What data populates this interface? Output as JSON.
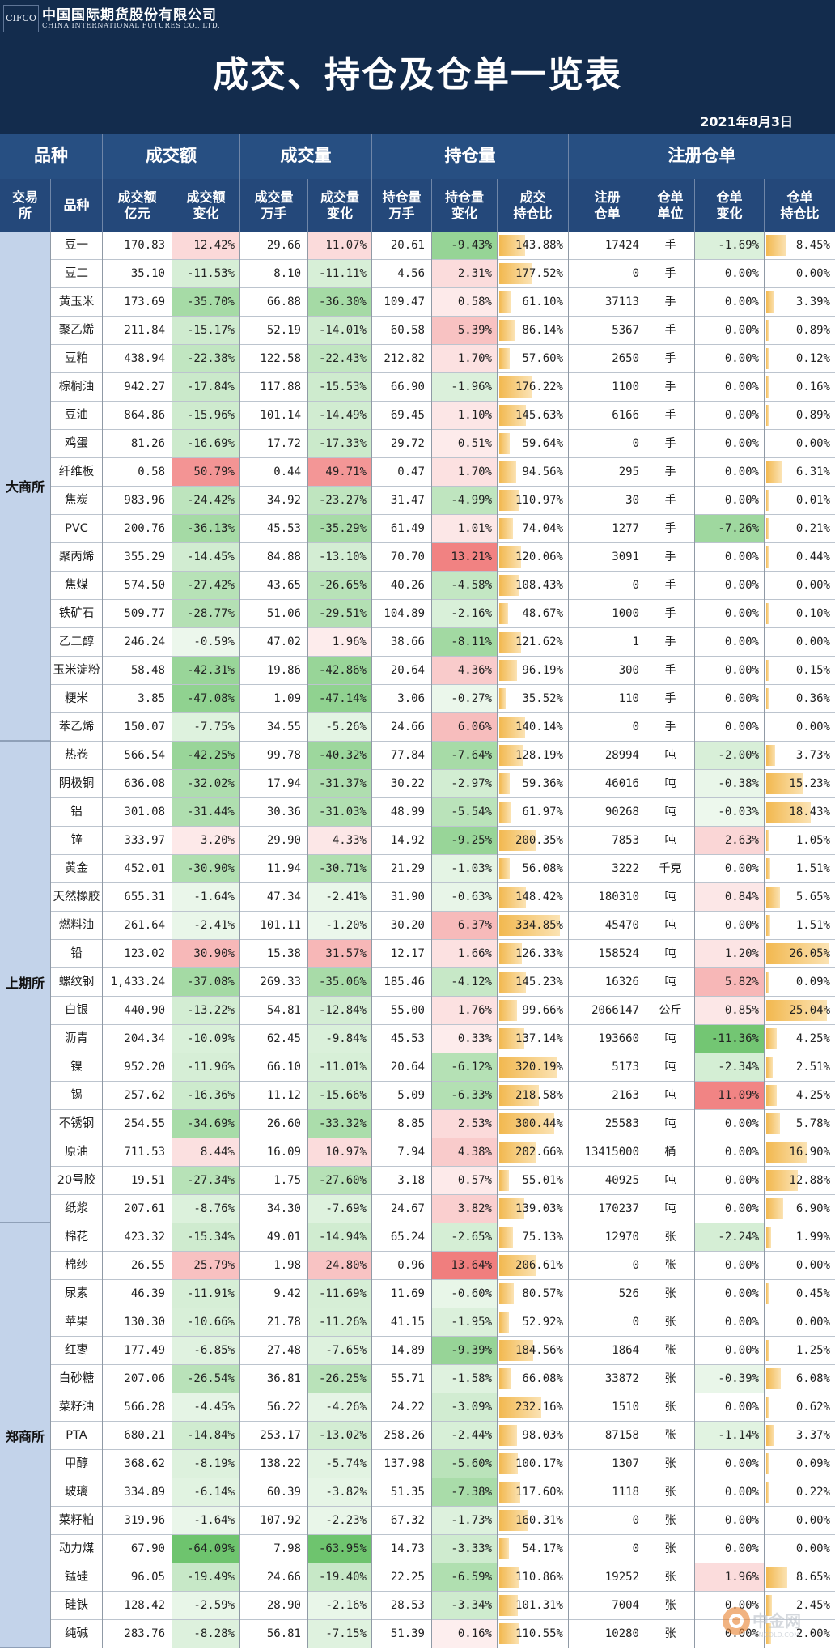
{
  "header": {
    "logo": "CIFCO",
    "company_cn": "中国国际期货股份有限公司",
    "company_en": "CHINA INTERNATIONAL FUTURES CO., LTD.",
    "title": "成交、持仓及仓单一览表",
    "date": "2021年8月3日"
  },
  "watermark": {
    "text": "中金网",
    "sub": "CNGOLD.COM"
  },
  "colors": {
    "up": "#f07b7b",
    "down": "#6cc36c",
    "bar": "#f2b84f",
    "banner": "#132c4d",
    "exchange_bg": "#c3d3ea"
  },
  "columns": {
    "groups": [
      "品种",
      "成交额",
      "成交量",
      "持仓量",
      "注册仓单"
    ],
    "exchange": "交易\n所",
    "product": "品种",
    "amount": "成交额\n亿元",
    "amount_chg": "成交额\n变化",
    "volume": "成交量\n万手",
    "volume_chg": "成交量\n变化",
    "oi": "持仓量\n万手",
    "oi_chg": "持仓量\n变化",
    "vol_oi_ratio": "成交\n持仓比",
    "receipts": "注册\n仓单",
    "unit": "仓单\n单位",
    "receipt_chg": "仓单\n变化",
    "receipt_oi_ratio": "仓单\n持仓比"
  },
  "exchanges": [
    {
      "name": "大商所",
      "rows": [
        [
          "豆一",
          "170.83",
          "12.42%",
          "29.66",
          "11.07%",
          "20.61",
          "-9.43%",
          "143.88%",
          "17424",
          "手",
          "-1.69%",
          "8.45%"
        ],
        [
          "豆二",
          "35.10",
          "-11.53%",
          "8.10",
          "-11.11%",
          "4.56",
          "2.31%",
          "177.52%",
          "0",
          "手",
          "0.00%",
          "0.00%"
        ],
        [
          "黄玉米",
          "173.69",
          "-35.70%",
          "66.88",
          "-36.30%",
          "109.47",
          "0.58%",
          "61.10%",
          "37113",
          "手",
          "0.00%",
          "3.39%"
        ],
        [
          "聚乙烯",
          "211.84",
          "-15.17%",
          "52.19",
          "-14.01%",
          "60.58",
          "5.39%",
          "86.14%",
          "5367",
          "手",
          "0.00%",
          "0.89%"
        ],
        [
          "豆粕",
          "438.94",
          "-22.38%",
          "122.58",
          "-22.43%",
          "212.82",
          "1.70%",
          "57.60%",
          "2650",
          "手",
          "0.00%",
          "0.12%"
        ],
        [
          "棕榈油",
          "942.27",
          "-17.84%",
          "117.88",
          "-15.53%",
          "66.90",
          "-1.96%",
          "176.22%",
          "1100",
          "手",
          "0.00%",
          "0.16%"
        ],
        [
          "豆油",
          "864.86",
          "-15.96%",
          "101.14",
          "-14.49%",
          "69.45",
          "1.10%",
          "145.63%",
          "6166",
          "手",
          "0.00%",
          "0.89%"
        ],
        [
          "鸡蛋",
          "81.26",
          "-16.69%",
          "17.72",
          "-17.33%",
          "29.72",
          "0.51%",
          "59.64%",
          "0",
          "手",
          "0.00%",
          "0.00%"
        ],
        [
          "纤维板",
          "0.58",
          "50.79%",
          "0.44",
          "49.71%",
          "0.47",
          "1.70%",
          "94.56%",
          "295",
          "手",
          "0.00%",
          "6.31%"
        ],
        [
          "焦炭",
          "983.96",
          "-24.42%",
          "34.92",
          "-23.27%",
          "31.47",
          "-4.99%",
          "110.97%",
          "30",
          "手",
          "0.00%",
          "0.01%"
        ],
        [
          "PVC",
          "200.76",
          "-36.13%",
          "45.53",
          "-35.29%",
          "61.49",
          "1.01%",
          "74.04%",
          "1277",
          "手",
          "-7.26%",
          "0.21%"
        ],
        [
          "聚丙烯",
          "355.29",
          "-14.45%",
          "84.88",
          "-13.10%",
          "70.70",
          "13.21%",
          "120.06%",
          "3091",
          "手",
          "0.00%",
          "0.44%"
        ],
        [
          "焦煤",
          "574.50",
          "-27.42%",
          "43.65",
          "-26.65%",
          "40.26",
          "-4.58%",
          "108.43%",
          "0",
          "手",
          "0.00%",
          "0.00%"
        ],
        [
          "铁矿石",
          "509.77",
          "-28.77%",
          "51.06",
          "-29.51%",
          "104.89",
          "-2.16%",
          "48.67%",
          "1000",
          "手",
          "0.00%",
          "0.10%"
        ],
        [
          "乙二醇",
          "246.24",
          "-0.59%",
          "47.02",
          "1.96%",
          "38.66",
          "-8.11%",
          "121.62%",
          "1",
          "手",
          "0.00%",
          "0.00%"
        ],
        [
          "玉米淀粉",
          "58.48",
          "-42.31%",
          "19.86",
          "-42.86%",
          "20.64",
          "4.36%",
          "96.19%",
          "300",
          "手",
          "0.00%",
          "0.15%"
        ],
        [
          "粳米",
          "3.85",
          "-47.08%",
          "1.09",
          "-47.14%",
          "3.06",
          "-0.27%",
          "35.52%",
          "110",
          "手",
          "0.00%",
          "0.36%"
        ],
        [
          "苯乙烯",
          "150.07",
          "-7.75%",
          "34.55",
          "-5.26%",
          "24.66",
          "6.06%",
          "140.14%",
          "0",
          "手",
          "0.00%",
          "0.00%"
        ]
      ]
    },
    {
      "name": "上期所",
      "rows": [
        [
          "热卷",
          "566.54",
          "-42.25%",
          "99.78",
          "-40.32%",
          "77.84",
          "-7.64%",
          "128.19%",
          "28994",
          "吨",
          "-2.00%",
          "3.73%"
        ],
        [
          "阴极铜",
          "636.08",
          "-32.02%",
          "17.94",
          "-31.37%",
          "30.22",
          "-2.97%",
          "59.36%",
          "46016",
          "吨",
          "-0.38%",
          "15.23%"
        ],
        [
          "铝",
          "301.08",
          "-31.44%",
          "30.36",
          "-31.03%",
          "48.99",
          "-5.54%",
          "61.97%",
          "90268",
          "吨",
          "-0.03%",
          "18.43%"
        ],
        [
          "锌",
          "333.97",
          "3.20%",
          "29.90",
          "4.33%",
          "14.92",
          "-9.25%",
          "200.35%",
          "7853",
          "吨",
          "2.63%",
          "1.05%"
        ],
        [
          "黄金",
          "452.01",
          "-30.90%",
          "11.94",
          "-30.71%",
          "21.29",
          "-1.03%",
          "56.08%",
          "3222",
          "千克",
          "0.00%",
          "1.51%"
        ],
        [
          "天然橡胶",
          "655.31",
          "-1.64%",
          "47.34",
          "-2.41%",
          "31.90",
          "-0.63%",
          "148.42%",
          "180310",
          "吨",
          "0.84%",
          "5.65%"
        ],
        [
          "燃料油",
          "261.64",
          "-2.41%",
          "101.11",
          "-1.20%",
          "30.20",
          "6.37%",
          "334.85%",
          "45470",
          "吨",
          "0.00%",
          "1.51%"
        ],
        [
          "铅",
          "123.02",
          "30.90%",
          "15.38",
          "31.57%",
          "12.17",
          "1.66%",
          "126.33%",
          "158524",
          "吨",
          "1.20%",
          "26.05%"
        ],
        [
          "螺纹钢",
          "1,433.24",
          "-37.08%",
          "269.33",
          "-35.06%",
          "185.46",
          "-4.12%",
          "145.23%",
          "16326",
          "吨",
          "5.82%",
          "0.09%"
        ],
        [
          "白银",
          "440.90",
          "-13.22%",
          "54.81",
          "-12.84%",
          "55.00",
          "1.76%",
          "99.66%",
          "2066147",
          "公斤",
          "0.85%",
          "25.04%"
        ],
        [
          "沥青",
          "204.34",
          "-10.09%",
          "62.45",
          "-9.84%",
          "45.53",
          "0.33%",
          "137.14%",
          "193660",
          "吨",
          "-11.36%",
          "4.25%"
        ],
        [
          "镍",
          "952.20",
          "-11.96%",
          "66.10",
          "-11.01%",
          "20.64",
          "-6.12%",
          "320.19%",
          "5173",
          "吨",
          "-2.34%",
          "2.51%"
        ],
        [
          "锡",
          "257.62",
          "-16.36%",
          "11.12",
          "-15.66%",
          "5.09",
          "-6.33%",
          "218.58%",
          "2163",
          "吨",
          "11.09%",
          "4.25%"
        ],
        [
          "不锈钢",
          "254.55",
          "-34.69%",
          "26.60",
          "-33.32%",
          "8.85",
          "2.53%",
          "300.44%",
          "25583",
          "吨",
          "0.00%",
          "5.78%"
        ],
        [
          "原油",
          "711.53",
          "8.44%",
          "16.09",
          "10.97%",
          "7.94",
          "4.38%",
          "202.66%",
          "13415000",
          "桶",
          "0.00%",
          "16.90%"
        ],
        [
          "20号胶",
          "19.51",
          "-27.34%",
          "1.75",
          "-27.60%",
          "3.18",
          "0.57%",
          "55.01%",
          "40925",
          "吨",
          "0.00%",
          "12.88%"
        ],
        [
          "纸浆",
          "207.61",
          "-8.76%",
          "34.30",
          "-7.69%",
          "24.67",
          "3.82%",
          "139.03%",
          "170237",
          "吨",
          "0.00%",
          "6.90%"
        ]
      ]
    },
    {
      "name": "郑商所",
      "rows": [
        [
          "棉花",
          "423.32",
          "-15.34%",
          "49.01",
          "-14.94%",
          "65.24",
          "-2.65%",
          "75.13%",
          "12970",
          "张",
          "-2.24%",
          "1.99%"
        ],
        [
          "棉纱",
          "26.55",
          "25.79%",
          "1.98",
          "24.80%",
          "0.96",
          "13.64%",
          "206.61%",
          "0",
          "张",
          "0.00%",
          "0.00%"
        ],
        [
          "尿素",
          "46.39",
          "-11.91%",
          "9.42",
          "-11.69%",
          "11.69",
          "-0.60%",
          "80.57%",
          "526",
          "张",
          "0.00%",
          "0.45%"
        ],
        [
          "苹果",
          "130.30",
          "-10.66%",
          "21.78",
          "-11.26%",
          "41.15",
          "-1.95%",
          "52.92%",
          "0",
          "张",
          "0.00%",
          "0.00%"
        ],
        [
          "红枣",
          "177.49",
          "-6.85%",
          "27.48",
          "-7.65%",
          "14.89",
          "-9.39%",
          "184.56%",
          "1864",
          "张",
          "0.00%",
          "1.25%"
        ],
        [
          "白砂糖",
          "207.06",
          "-26.54%",
          "36.81",
          "-26.25%",
          "55.71",
          "-1.58%",
          "66.08%",
          "33872",
          "张",
          "-0.39%",
          "6.08%"
        ],
        [
          "菜籽油",
          "566.28",
          "-4.45%",
          "56.22",
          "-4.26%",
          "24.22",
          "-3.09%",
          "232.16%",
          "1510",
          "张",
          "0.00%",
          "0.62%"
        ],
        [
          "PTA",
          "680.21",
          "-14.84%",
          "253.17",
          "-13.02%",
          "258.26",
          "-2.44%",
          "98.03%",
          "87158",
          "张",
          "-1.14%",
          "3.37%"
        ],
        [
          "甲醇",
          "368.62",
          "-8.19%",
          "138.22",
          "-5.74%",
          "137.98",
          "-5.60%",
          "100.17%",
          "1307",
          "张",
          "0.00%",
          "0.09%"
        ],
        [
          "玻璃",
          "334.89",
          "-6.14%",
          "60.39",
          "-3.82%",
          "51.35",
          "-7.38%",
          "117.60%",
          "1118",
          "张",
          "0.00%",
          "0.22%"
        ],
        [
          "菜籽粕",
          "319.96",
          "-1.64%",
          "107.92",
          "-2.23%",
          "67.32",
          "-1.73%",
          "160.31%",
          "0",
          "张",
          "0.00%",
          "0.00%"
        ],
        [
          "动力煤",
          "67.90",
          "-64.09%",
          "7.98",
          "-63.95%",
          "14.73",
          "-3.33%",
          "54.17%",
          "0",
          "张",
          "0.00%",
          "0.00%"
        ],
        [
          "锰硅",
          "96.05",
          "-19.49%",
          "24.66",
          "-19.40%",
          "22.25",
          "-6.59%",
          "110.86%",
          "19252",
          "张",
          "1.96%",
          "8.65%"
        ],
        [
          "硅铁",
          "128.42",
          "-2.59%",
          "28.90",
          "-2.16%",
          "28.53",
          "-3.34%",
          "101.31%",
          "7004",
          "张",
          "0.00%",
          "2.45%"
        ],
        [
          "纯碱",
          "283.76",
          "-8.28%",
          "56.81",
          "-7.15%",
          "51.39",
          "0.16%",
          "110.55%",
          "10280",
          "张",
          "0.00%",
          "2.00%"
        ]
      ]
    }
  ]
}
